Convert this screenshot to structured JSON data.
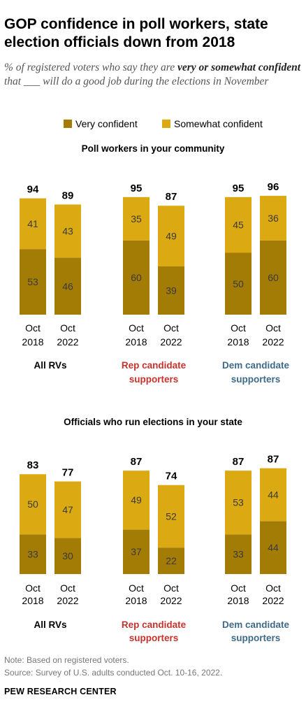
{
  "title": "GOP confidence in poll workers, state election officials down from 2018",
  "subtitle": {
    "part1": "% of registered voters who say they are ",
    "bold": "very or somewhat confident",
    "part2": " that ___ will do a good job during the elections in November"
  },
  "legend": [
    {
      "label": "Very confident",
      "color": "#a27c05"
    },
    {
      "label": "Somewhat confident",
      "color": "#dba911"
    }
  ],
  "colors": {
    "very": "#a27c05",
    "somewhat": "#dba911",
    "rep": "#c8322d",
    "dem": "#3e6a8a",
    "total_label": "#000000",
    "segment_label": "#3a3a3a"
  },
  "chart_data": [
    {
      "type": "bar",
      "stacked": true,
      "title": "Poll workers in your community",
      "categories_top": [
        "Oct",
        "Oct"
      ],
      "categories_bottom": [
        "2018",
        "2022"
      ],
      "groups": [
        {
          "name": "All RVs",
          "color_key": "total_label",
          "very": [
            53,
            46
          ],
          "somewhat": [
            41,
            43
          ],
          "total": [
            94,
            89
          ]
        },
        {
          "name": "Rep candidate supporters",
          "color_key": "rep",
          "very": [
            60,
            39
          ],
          "somewhat": [
            35,
            49
          ],
          "total": [
            95,
            87
          ]
        },
        {
          "name": "Dem candidate supporters",
          "color_key": "dem",
          "very": [
            50,
            60
          ],
          "somewhat": [
            45,
            36
          ],
          "total": [
            95,
            96
          ]
        }
      ]
    },
    {
      "type": "bar",
      "stacked": true,
      "title": "Officials who run elections in your state",
      "categories_top": [
        "Oct",
        "Oct"
      ],
      "categories_bottom": [
        "2018",
        "2022"
      ],
      "groups": [
        {
          "name": "All RVs",
          "color_key": "total_label",
          "very": [
            33,
            30
          ],
          "somewhat": [
            50,
            47
          ],
          "total": [
            83,
            77
          ]
        },
        {
          "name": "Rep candidate supporters",
          "color_key": "rep",
          "very": [
            37,
            22
          ],
          "somewhat": [
            49,
            52
          ],
          "total": [
            87,
            74
          ]
        },
        {
          "name": "Dem candidate supporters",
          "color_key": "dem",
          "very": [
            33,
            44
          ],
          "somewhat": [
            53,
            44
          ],
          "total": [
            87,
            87
          ]
        }
      ]
    }
  ],
  "footer": {
    "note": "Note: Based on registered voters.",
    "source": "Source: Survey of U.S. adults conducted Oct. 10-16, 2022.",
    "brand": "PEW RESEARCH CENTER"
  }
}
